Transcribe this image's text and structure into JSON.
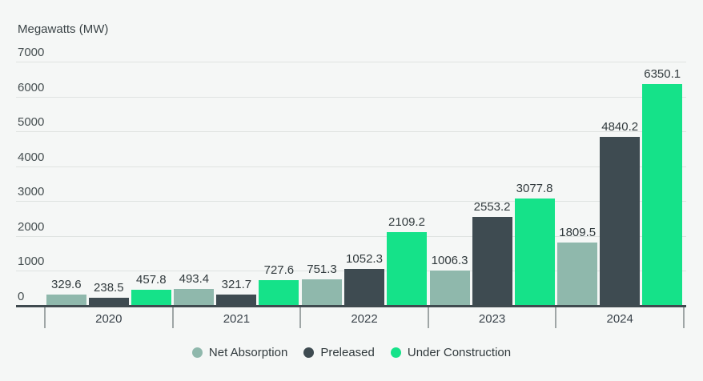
{
  "chart_data": {
    "type": "bar",
    "title": "",
    "ylabel": "Megawatts (MW)",
    "xlabel": "",
    "categories": [
      "2020",
      "2021",
      "2022",
      "2023",
      "2024"
    ],
    "series": [
      {
        "name": "Net Absorption",
        "color": "#8fb8ac",
        "values": [
          329.6,
          493.4,
          751.3,
          1006.3,
          1809.5
        ]
      },
      {
        "name": "Preleased",
        "color": "#3e4b51",
        "values": [
          238.5,
          321.7,
          1052.3,
          2553.2,
          4840.2
        ]
      },
      {
        "name": "Under Construction",
        "color": "#15e289",
        "values": [
          457.8,
          727.6,
          2109.2,
          3077.8,
          6350.1
        ]
      }
    ],
    "ylim": [
      0,
      7000
    ],
    "ytick_step": 1000,
    "grid": true,
    "value_labels": true,
    "legend_position": "bottom",
    "style": {
      "background": "#f5f7f6",
      "gridline_color": "#dfe3e1",
      "baseline_color": "#3f4a4f",
      "tick_color": "#9fa6a6",
      "text_color": "#313a3d"
    }
  }
}
